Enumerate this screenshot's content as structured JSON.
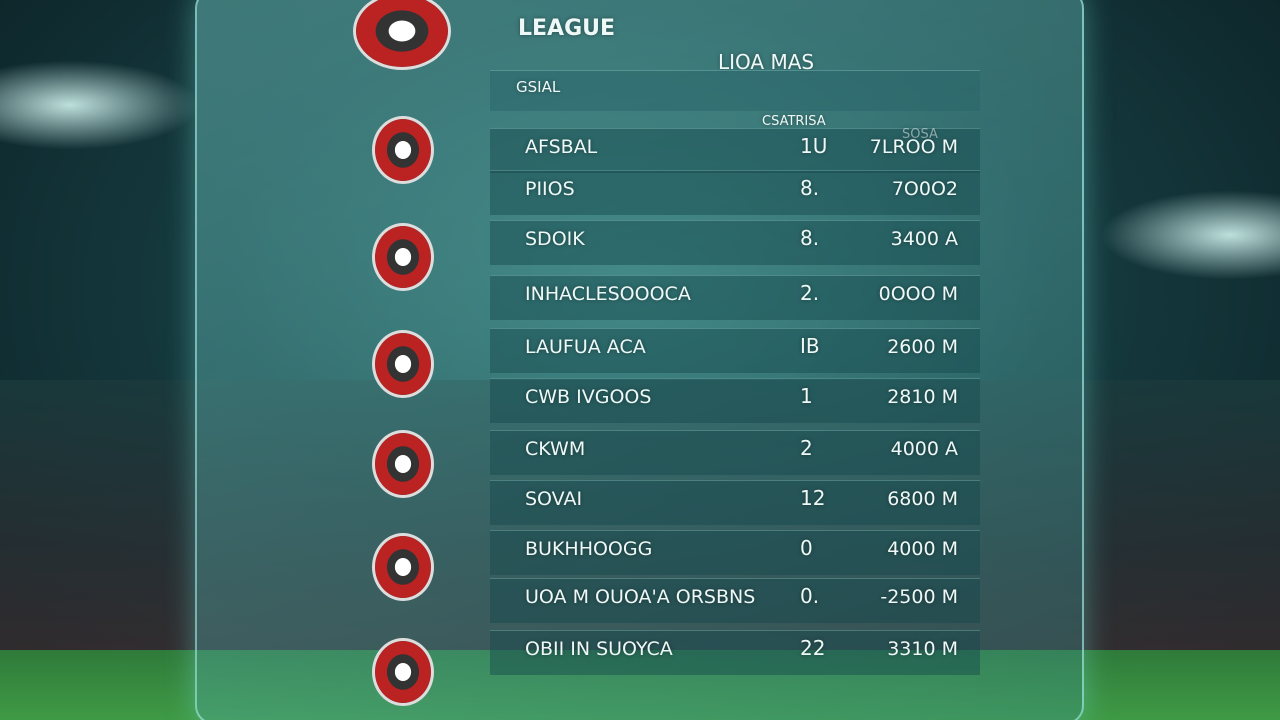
{
  "header": {
    "title": "LEAGUE",
    "subtitle": "LIOA MAS"
  },
  "table": {
    "columns": [
      "GSIAL",
      "CSATRISA",
      "SOSA"
    ],
    "rows": [
      [
        "AFSBAL",
        "1U",
        "7LROO M"
      ],
      [
        "PIIOS",
        "8.",
        "7O0O2"
      ],
      [
        "SDOIK",
        "8.",
        "3400 A"
      ],
      [
        "INHACLESOOOCA",
        "2.",
        "0OOO M"
      ],
      [
        "LAUFUA ACA",
        "IB",
        "2600 M"
      ],
      [
        "CWB IVGOOS",
        "1",
        "2810 M"
      ],
      [
        "CKWM",
        "2",
        "4000 A"
      ],
      [
        "SOVAI",
        "12",
        "6800 M"
      ],
      [
        "BUKHHOOGG",
        "0",
        "4000 M"
      ],
      [
        "UOA M OUOA'A ORSBNS",
        "0.",
        "-2500 M"
      ],
      [
        "OBII IN SUOYCA",
        "22",
        "3310 M"
      ]
    ]
  }
}
